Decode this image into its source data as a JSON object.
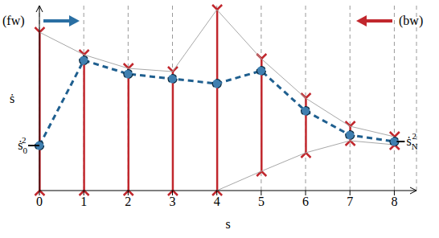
{
  "chart_data": {
    "type": "line",
    "x": [
      0,
      1,
      2,
      3,
      4,
      5,
      6,
      7,
      8
    ],
    "xlim": [
      0,
      8.5
    ],
    "xticks": [
      0,
      1,
      2,
      3,
      4,
      5,
      6,
      7,
      8
    ],
    "ylim": [
      0,
      11.5
    ],
    "tick_labels": "x",
    "grid": true,
    "x_label": "s",
    "y_label": "ṡ",
    "annotations": [
      {
        "text": "ṡ",
        "sub": "0",
        "sup": "2",
        "x": 0,
        "y": 2.8,
        "side": "left"
      },
      {
        "text": "ṡ",
        "sub": "N",
        "sup": "2",
        "x": 8,
        "y": 3.05,
        "side": "right"
      },
      {
        "text": "(fw)",
        "color": "#2a6fa3",
        "side": "left"
      },
      {
        "text": "(bw)",
        "color": "#c1272d",
        "side": "right"
      }
    ],
    "series": [
      {
        "type": "line",
        "color": "#a8a8a8",
        "values": [
          9.85,
          8.45,
          7.6,
          7.4,
          11.25,
          8.2,
          5.75,
          4.0,
          3.35
        ]
      },
      {
        "type": "line",
        "color": "#a8a8a8",
        "values": [
          null,
          null,
          null,
          null,
          0,
          1.2,
          2.35,
          3.1,
          2.85
        ]
      },
      {
        "type": "range",
        "color": "#c1272d",
        "lower": [
          0,
          0,
          0,
          0,
          0,
          1.2,
          2.35,
          3.1,
          2.85
        ],
        "upper": [
          9.85,
          8.45,
          7.6,
          7.4,
          11.25,
          8.2,
          5.75,
          4.0,
          3.35
        ]
      },
      {
        "type": "line",
        "color": "#1f5f8f",
        "line_style": "dashed",
        "marker": "circle",
        "values": [
          2.8,
          8.1,
          7.25,
          6.95,
          6.65,
          7.45,
          4.95,
          3.45,
          3.05
        ]
      }
    ]
  }
}
